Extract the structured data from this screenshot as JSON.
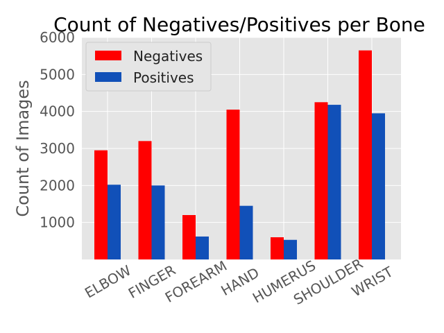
{
  "chart_data": {
    "type": "bar",
    "title": "Count of Negatives/Positives per Bone",
    "xlabel": "",
    "ylabel": "Count of Images",
    "categories": [
      "ELBOW",
      "FINGER",
      "FOREARM",
      "HAND",
      "HUMERUS",
      "SHOULDER",
      "WRIST"
    ],
    "series": [
      {
        "name": "Negatives",
        "color": "#ff0000",
        "values": [
          2950,
          3200,
          1200,
          4050,
          600,
          4250,
          5650
        ]
      },
      {
        "name": "Positives",
        "color": "#1150b8",
        "values": [
          2020,
          2000,
          620,
          1450,
          530,
          4180,
          3950
        ]
      }
    ],
    "ylim": [
      0,
      6000
    ],
    "yticks": [
      1000,
      2000,
      3000,
      4000,
      5000,
      6000
    ],
    "grid": true,
    "legend": "top-left",
    "background": "#e5e5e5"
  }
}
